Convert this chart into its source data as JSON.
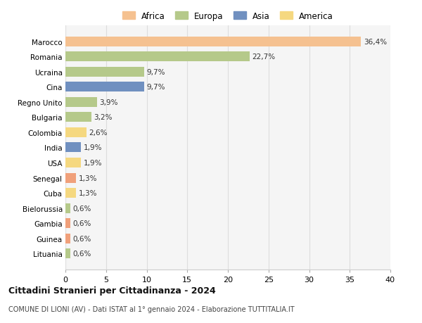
{
  "countries": [
    "Marocco",
    "Romania",
    "Ucraina",
    "Cina",
    "Regno Unito",
    "Bulgaria",
    "Colombia",
    "India",
    "USA",
    "Senegal",
    "Cuba",
    "Bielorussia",
    "Gambia",
    "Guinea",
    "Lituania"
  ],
  "values": [
    36.4,
    22.7,
    9.7,
    9.7,
    3.9,
    3.2,
    2.6,
    1.9,
    1.9,
    1.3,
    1.3,
    0.6,
    0.6,
    0.6,
    0.6
  ],
  "labels": [
    "36,4%",
    "22,7%",
    "9,7%",
    "9,7%",
    "3,9%",
    "3,2%",
    "2,6%",
    "1,9%",
    "1,9%",
    "1,3%",
    "1,3%",
    "0,6%",
    "0,6%",
    "0,6%",
    "0,6%"
  ],
  "colors": [
    "#F5C190",
    "#B5C98A",
    "#B5C98A",
    "#7090C0",
    "#B5C98A",
    "#B5C98A",
    "#F5D880",
    "#7090C0",
    "#F5D880",
    "#F0A07A",
    "#F5D880",
    "#B5C98A",
    "#F0A07A",
    "#F0A07A",
    "#B5C98A"
  ],
  "continent_colors": {
    "Africa": "#F5C190",
    "Europa": "#B5C98A",
    "Asia": "#7090C0",
    "America": "#F5D880"
  },
  "title": "Cittadini Stranieri per Cittadinanza - 2024",
  "subtitle": "COMUNE DI LIONI (AV) - Dati ISTAT al 1° gennaio 2024 - Elaborazione TUTTITALIA.IT",
  "xlim": [
    0,
    40
  ],
  "xticks": [
    0,
    5,
    10,
    15,
    20,
    25,
    30,
    35,
    40
  ],
  "bg_color": "#FFFFFF",
  "plot_bg_color": "#F5F5F5",
  "grid_color": "#DDDDDD"
}
